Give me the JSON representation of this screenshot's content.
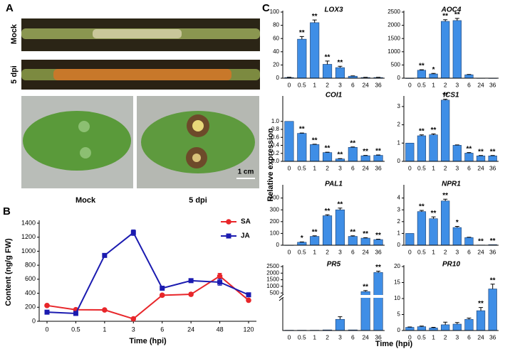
{
  "panel_labels": [
    "A",
    "B",
    "C"
  ],
  "panel_a": {
    "row_labels": [
      "Mock",
      "5 dpi"
    ],
    "leaf_labels": [
      "Mock",
      "5 dpi"
    ],
    "scale_bar": "1 cm"
  },
  "panel_c": {
    "ylabel": "Relative expression",
    "xlabel": "Time (hpi)"
  },
  "chart_data": [
    {
      "type": "line",
      "xlabel": "Time (hpi)",
      "ylabel": "Content (ng/g FW)",
      "categories": [
        "0",
        "0.5",
        "1",
        "3",
        "6",
        "24",
        "48",
        "120"
      ],
      "ylim": [
        0,
        1400
      ],
      "yticks": [
        0,
        200,
        400,
        600,
        800,
        1000,
        1200,
        1400
      ],
      "legend": "upper right",
      "series": [
        {
          "name": "SA",
          "color": "#e8262a",
          "marker": "circle",
          "values": [
            225,
            165,
            162,
            35,
            372,
            385,
            645,
            300
          ],
          "errors": [
            10,
            10,
            10,
            5,
            20,
            25,
            40,
            20
          ]
        },
        {
          "name": "JA",
          "color": "#1b1bb0",
          "marker": "square",
          "values": [
            130,
            112,
            940,
            1265,
            472,
            580,
            558,
            378
          ],
          "errors": [
            10,
            10,
            15,
            40,
            10,
            25,
            45,
            10
          ]
        }
      ]
    },
    {
      "type": "bar",
      "title": "LOX3",
      "categories": [
        "0",
        "0.5",
        "1",
        "2",
        "3",
        "6",
        "24",
        "36"
      ],
      "color": "#3f8ee6",
      "ylim": [
        0,
        100
      ],
      "yticks": [
        0,
        20,
        40,
        60,
        80,
        100
      ],
      "values": [
        1,
        59,
        84,
        21,
        16,
        3,
        1,
        1
      ],
      "errors": [
        0.5,
        4,
        4,
        5,
        2,
        0.5,
        0.3,
        0.3
      ],
      "annotations": [
        null,
        "**",
        "**",
        "**",
        "**",
        null,
        null,
        null
      ]
    },
    {
      "type": "bar",
      "title": "AOC4",
      "categories": [
        "0",
        "0.5",
        "1",
        "2",
        "3",
        "6",
        "24",
        "36"
      ],
      "color": "#3f8ee6",
      "ylim": [
        0,
        2500
      ],
      "yticks": [
        0,
        500,
        1000,
        1500,
        2000,
        2500
      ],
      "values": [
        1,
        300,
        160,
        2150,
        2180,
        130,
        5,
        3
      ],
      "errors": [
        0,
        20,
        20,
        60,
        80,
        10,
        0,
        0
      ],
      "annotations": [
        null,
        "**",
        "*",
        "**",
        "**",
        null,
        null,
        null
      ]
    },
    {
      "type": "bar",
      "title": "COI1",
      "categories": [
        "0",
        "0.5",
        "1",
        "2",
        "3",
        "6",
        "24",
        "36"
      ],
      "color": "#3f8ee6",
      "ylim": [
        0,
        1.6
      ],
      "yticks": [
        {
          "value": 0,
          "label": "0.0"
        },
        0.2,
        0.4,
        0.6,
        0.8,
        {
          "value": 1,
          "label": "1.0"
        }
      ],
      "values": [
        1.0,
        0.7,
        0.42,
        0.22,
        0.06,
        0.35,
        0.14,
        0.15
      ],
      "errors": [
        0,
        0.01,
        0.01,
        0.01,
        0.01,
        0.01,
        0.01,
        0.01
      ],
      "annotations": [
        null,
        "**",
        "**",
        "**",
        "**",
        "**",
        "**",
        "**"
      ]
    },
    {
      "type": "bar",
      "title": "ICS1",
      "categories": [
        "0",
        "0.5",
        "1",
        "2",
        "3",
        "6",
        "24",
        "36"
      ],
      "color": "#3f8ee6",
      "ylim": [
        0,
        3.5
      ],
      "yticks": [
        0,
        1,
        2,
        3
      ],
      "values": [
        1,
        1.4,
        1.45,
        3.35,
        0.88,
        0.45,
        0.3,
        0.3
      ],
      "errors": [
        0,
        0.05,
        0.05,
        0.05,
        0.02,
        0.03,
        0.02,
        0.02
      ],
      "annotations": [
        null,
        "**",
        "**",
        "**",
        null,
        "**",
        "**",
        "**"
      ]
    },
    {
      "type": "bar",
      "title": "PAL1",
      "categories": [
        "0",
        "0.5",
        "1",
        "2",
        "3",
        "6",
        "24",
        "36"
      ],
      "color": "#3f8ee6",
      "ylim": [
        0,
        500
      ],
      "yticks": [
        0,
        100,
        200,
        300,
        400
      ],
      "values": [
        1,
        25,
        75,
        250,
        300,
        75,
        60,
        48
      ],
      "errors": [
        0,
        3,
        5,
        8,
        15,
        5,
        4,
        3
      ],
      "annotations": [
        null,
        "*",
        "**",
        "**",
        "**",
        "**",
        "**",
        "**"
      ]
    },
    {
      "type": "bar",
      "title": "NPR1",
      "categories": [
        "0",
        "0.5",
        "1",
        "2",
        "3",
        "6",
        "24",
        "36"
      ],
      "color": "#3f8ee6",
      "ylim": [
        0,
        5
      ],
      "yticks": [
        0,
        1,
        2,
        3,
        4
      ],
      "values": [
        1,
        2.85,
        2.25,
        3.75,
        1.5,
        0.65,
        0.02,
        0.05
      ],
      "errors": [
        0,
        0.1,
        0.15,
        0.15,
        0.1,
        0.03,
        0,
        0
      ],
      "annotations": [
        null,
        "**",
        "**",
        "**",
        "*",
        null,
        "**",
        "**"
      ]
    },
    {
      "type": "bar",
      "title": "PR5",
      "categories": [
        "0",
        "0.5",
        "1",
        "2",
        "3",
        "6",
        "24",
        "36"
      ],
      "color": "#3f8ee6",
      "ylim": [
        0,
        2500
      ],
      "ybreak": [
        100,
        400
      ],
      "yticks": [
        500,
        1000,
        1500,
        2000,
        2500
      ],
      "values": [
        1,
        1,
        1,
        2,
        35,
        2,
        600,
        2050
      ],
      "errors": [
        0,
        0,
        0,
        0,
        8,
        0,
        80,
        100
      ],
      "annotations": [
        null,
        null,
        null,
        null,
        null,
        null,
        "**",
        "**"
      ]
    },
    {
      "type": "bar",
      "title": "PR10",
      "categories": [
        "0",
        "0.5",
        "1",
        "2",
        "3",
        "6",
        "24",
        "36"
      ],
      "color": "#3f8ee6",
      "ylim": [
        0,
        20
      ],
      "yticks": [
        0,
        5,
        10,
        15,
        20
      ],
      "values": [
        1,
        1.2,
        0.8,
        1.8,
        2,
        3.5,
        6.2,
        13
      ],
      "errors": [
        0.1,
        0.2,
        0.2,
        0.8,
        0.5,
        0.4,
        1,
        1.5
      ],
      "annotations": [
        null,
        null,
        null,
        null,
        null,
        null,
        "**",
        "**"
      ]
    }
  ]
}
